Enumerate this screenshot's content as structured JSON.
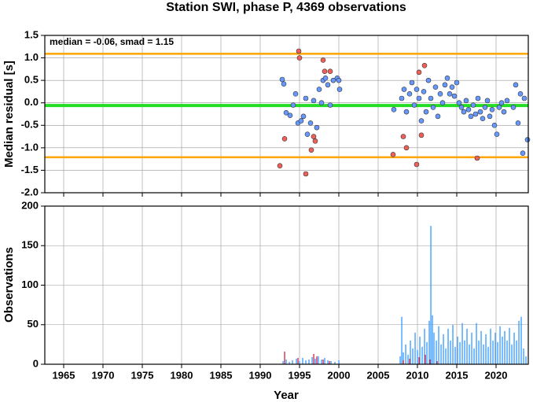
{
  "chart_data": [
    {
      "type": "scatter",
      "title": "Station SWI, phase P, 4369 observations",
      "y_label": "Median residual [s]",
      "annotation": "median = -0.06, smad = 1.15",
      "xlim": [
        1962.6,
        2024.1
      ],
      "xticks": [
        1965,
        1970,
        1975,
        1980,
        1985,
        1990,
        1995,
        2000,
        2005,
        2010,
        2015,
        2020
      ],
      "ylim": [
        -2.0,
        1.5
      ],
      "yticks": [
        1.5,
        {
          "value": 1.0,
          "label": "1.0"
        },
        0.5,
        {
          "value": 0.0,
          "label": "0.0"
        },
        -0.5,
        {
          "value": -1.0,
          "label": "-1.0"
        },
        -1.5,
        {
          "value": -2.0,
          "label": "-2.0"
        }
      ],
      "grid": true,
      "hlines": [
        {
          "value": 1.09,
          "color": "#ffa500"
        },
        {
          "value": -0.06,
          "color": "#22dd22"
        },
        {
          "value": -1.21,
          "color": "#ffa500"
        }
      ],
      "series": [
        {
          "color": "#6699ff",
          "x": [
            1992.8,
            1993.0,
            1993.3,
            1993.8,
            1994.2,
            1994.5,
            1994.8,
            1995.2,
            1995.5,
            1995.8,
            1996.0,
            1996.4,
            1996.8,
            1997.2,
            1997.5,
            1997.8,
            1998.0,
            1998.3,
            1998.6,
            1998.9,
            1999.3,
            1999.8,
            2000.1,
            2000.0,
            2007.0,
            2008.0,
            2008.3,
            2008.6,
            2009.0,
            2009.3,
            2009.6,
            2009.9,
            2010.2,
            2010.5,
            2010.8,
            2011.1,
            2011.4,
            2011.7,
            2012.0,
            2012.3,
            2012.6,
            2012.9,
            2013.2,
            2013.5,
            2013.8,
            2014.1,
            2014.4,
            2014.7,
            2015.0,
            2015.3,
            2015.6,
            2015.9,
            2016.2,
            2016.5,
            2016.8,
            2017.1,
            2017.4,
            2017.7,
            2018.0,
            2018.3,
            2018.6,
            2018.9,
            2019.2,
            2019.5,
            2019.8,
            2020.1,
            2020.4,
            2020.7,
            2021.0,
            2021.4,
            2022.2,
            2022.5,
            2022.8,
            2023.1,
            2023.4,
            2023.6,
            2024.0
          ],
          "values": [
            0.52,
            0.42,
            -0.22,
            -0.28,
            -0.05,
            0.2,
            -0.45,
            -0.4,
            -0.3,
            0.1,
            -0.7,
            -0.45,
            0.05,
            -0.55,
            0.3,
            0.0,
            0.5,
            0.55,
            0.4,
            -0.05,
            0.5,
            0.55,
            0.3,
            0.5,
            -0.15,
            0.1,
            0.3,
            -0.2,
            0.2,
            0.45,
            -0.05,
            0.3,
            0.1,
            -0.4,
            0.25,
            -0.2,
            0.5,
            0.1,
            -0.1,
            0.35,
            -0.3,
            0.2,
            0.0,
            0.4,
            0.55,
            0.2,
            0.35,
            0.15,
            0.45,
            0.0,
            -0.1,
            -0.2,
            0.05,
            -0.15,
            -0.3,
            -0.05,
            -0.25,
            0.1,
            -0.2,
            -0.35,
            -0.1,
            0.05,
            -0.3,
            -0.15,
            -0.5,
            -0.7,
            -0.1,
            0.0,
            -0.2,
            0.05,
            -0.1,
            0.4,
            -0.45,
            0.2,
            -1.12,
            0.1,
            -0.82
          ]
        },
        {
          "color": "#f0605a",
          "x": [
            1992.5,
            1993.1,
            1994.9,
            1995.0,
            1995.8,
            1996.5,
            1996.8,
            1997.0,
            1998.0,
            1998.2,
            1998.9,
            2006.9,
            2008.2,
            2008.6,
            2009.9,
            2010.2,
            2010.5,
            2010.9,
            2017.6
          ],
          "values": [
            -1.4,
            -0.8,
            1.15,
            1.0,
            -1.58,
            -1.05,
            -0.75,
            -0.85,
            0.95,
            0.7,
            0.7,
            -1.15,
            -0.75,
            -1.0,
            -1.37,
            0.68,
            -0.72,
            0.83,
            -1.23
          ]
        }
      ]
    },
    {
      "type": "bar",
      "x_label": "Year",
      "y_label": "Observations",
      "xlim": [
        1962.6,
        2024.1
      ],
      "xticks": [
        1965,
        1970,
        1975,
        1980,
        1985,
        1990,
        1995,
        2000,
        2005,
        2010,
        2015,
        2020
      ],
      "ylim": [
        0,
        200
      ],
      "yticks": [
        0,
        50,
        100,
        150,
        200
      ],
      "grid": true,
      "series": [
        {
          "color": "#3399ff",
          "x": [
            1992.9,
            1993.3,
            1993.7,
            1994.1,
            1994.6,
            1995.0,
            1995.4,
            1995.8,
            1996.2,
            1996.6,
            1997.0,
            1997.4,
            1997.8,
            1998.2,
            1998.6,
            1999.0,
            1999.5,
            2000.0,
            2007.8,
            2008.0,
            2008.2,
            2008.5,
            2008.8,
            2009.1,
            2009.4,
            2009.7,
            2010.0,
            2010.3,
            2010.6,
            2010.9,
            2011.2,
            2011.5,
            2011.7,
            2011.9,
            2012.1,
            2012.4,
            2012.7,
            2013.0,
            2013.3,
            2013.6,
            2013.9,
            2014.2,
            2014.5,
            2014.8,
            2015.1,
            2015.4,
            2015.7,
            2016.0,
            2016.3,
            2016.6,
            2016.9,
            2017.2,
            2017.5,
            2017.8,
            2018.1,
            2018.4,
            2018.7,
            2019.0,
            2019.3,
            2019.6,
            2019.9,
            2020.2,
            2020.5,
            2020.8,
            2021.1,
            2021.4,
            2021.7,
            2022.0,
            2022.3,
            2022.6,
            2022.9,
            2023.2,
            2023.5,
            2023.8
          ],
          "values": [
            4,
            6,
            3,
            5,
            7,
            4,
            8,
            5,
            6,
            9,
            7,
            10,
            6,
            8,
            5,
            4,
            3,
            5,
            10,
            60,
            15,
            25,
            12,
            30,
            20,
            40,
            18,
            35,
            22,
            45,
            28,
            55,
            175,
            62,
            40,
            30,
            48,
            25,
            38,
            20,
            45,
            30,
            50,
            22,
            35,
            28,
            52,
            30,
            45,
            25,
            40,
            20,
            52,
            30,
            42,
            25,
            38,
            22,
            45,
            30,
            40,
            28,
            48,
            35,
            42,
            30,
            46,
            25,
            40,
            30,
            55,
            60,
            20,
            10
          ]
        },
        {
          "color": "#cc2244",
          "x": [
            1993.1,
            1994.8,
            1996.8,
            1997.2,
            1998.0,
            1998.8,
            2008.2,
            2009.0,
            2010.2,
            2011.0,
            2011.6,
            2012.5
          ],
          "values": [
            16,
            8,
            13,
            10,
            6,
            4,
            5,
            7,
            9,
            12,
            6,
            4
          ]
        }
      ]
    }
  ]
}
